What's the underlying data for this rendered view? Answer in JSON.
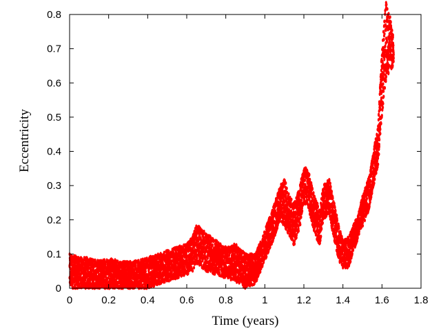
{
  "chart_data": {
    "type": "scatter",
    "title": "",
    "xlabel": "Time (years)",
    "ylabel": "Eccentricity",
    "xlim": [
      0,
      1.8
    ],
    "ylim": [
      0,
      0.8
    ],
    "xticks": [
      0,
      0.2,
      0.4,
      0.6,
      0.8,
      1,
      1.2,
      1.4,
      1.6,
      1.8
    ],
    "yticks": [
      0,
      0.1,
      0.2,
      0.3,
      0.4,
      0.5,
      0.6,
      0.7,
      0.8
    ],
    "xtick_labels": [
      "0",
      "0.2",
      "0.4",
      "0.6",
      "0.8",
      "1",
      "1.2",
      "1.4",
      "1.6",
      "1.8"
    ],
    "ytick_labels": [
      "0",
      "0.1",
      "0.2",
      "0.3",
      "0.4",
      "0.5",
      "0.6",
      "0.7",
      "0.8"
    ],
    "grid": false,
    "legend": "none",
    "series": [
      {
        "color": "#ff0000",
        "marker": "dot",
        "envelope": {
          "x": [
            0,
            0.05,
            0.1,
            0.15,
            0.2,
            0.25,
            0.3,
            0.35,
            0.4,
            0.45,
            0.5,
            0.55,
            0.6,
            0.63,
            0.65,
            0.7,
            0.75,
            0.8,
            0.85,
            0.9,
            0.95,
            1.0,
            1.05,
            1.08,
            1.1,
            1.13,
            1.15,
            1.18,
            1.2,
            1.22,
            1.25,
            1.28,
            1.3,
            1.33,
            1.35,
            1.38,
            1.4,
            1.43,
            1.45,
            1.48,
            1.5,
            1.53,
            1.55,
            1.58,
            1.6,
            1.62,
            1.64,
            1.66
          ],
          "y_min": [
            0.0,
            0.0,
            0.0,
            0.0,
            0.0,
            0.0,
            0.0,
            0.0,
            0.0,
            0.01,
            0.02,
            0.03,
            0.04,
            0.05,
            0.07,
            0.05,
            0.04,
            0.03,
            0.02,
            0.0,
            0.01,
            0.08,
            0.15,
            0.2,
            0.18,
            0.15,
            0.12,
            0.18,
            0.25,
            0.24,
            0.17,
            0.12,
            0.2,
            0.22,
            0.15,
            0.08,
            0.06,
            0.06,
            0.1,
            0.15,
            0.18,
            0.22,
            0.28,
            0.36,
            0.5,
            0.6,
            0.64,
            0.64
          ],
          "y_max": [
            0.1,
            0.09,
            0.09,
            0.08,
            0.09,
            0.08,
            0.08,
            0.08,
            0.09,
            0.1,
            0.11,
            0.12,
            0.13,
            0.15,
            0.19,
            0.16,
            0.14,
            0.12,
            0.13,
            0.1,
            0.1,
            0.17,
            0.25,
            0.3,
            0.32,
            0.27,
            0.25,
            0.3,
            0.36,
            0.35,
            0.28,
            0.23,
            0.3,
            0.32,
            0.27,
            0.18,
            0.14,
            0.15,
            0.18,
            0.22,
            0.27,
            0.32,
            0.38,
            0.48,
            0.7,
            0.84,
            0.8,
            0.73
          ]
        }
      }
    ]
  }
}
